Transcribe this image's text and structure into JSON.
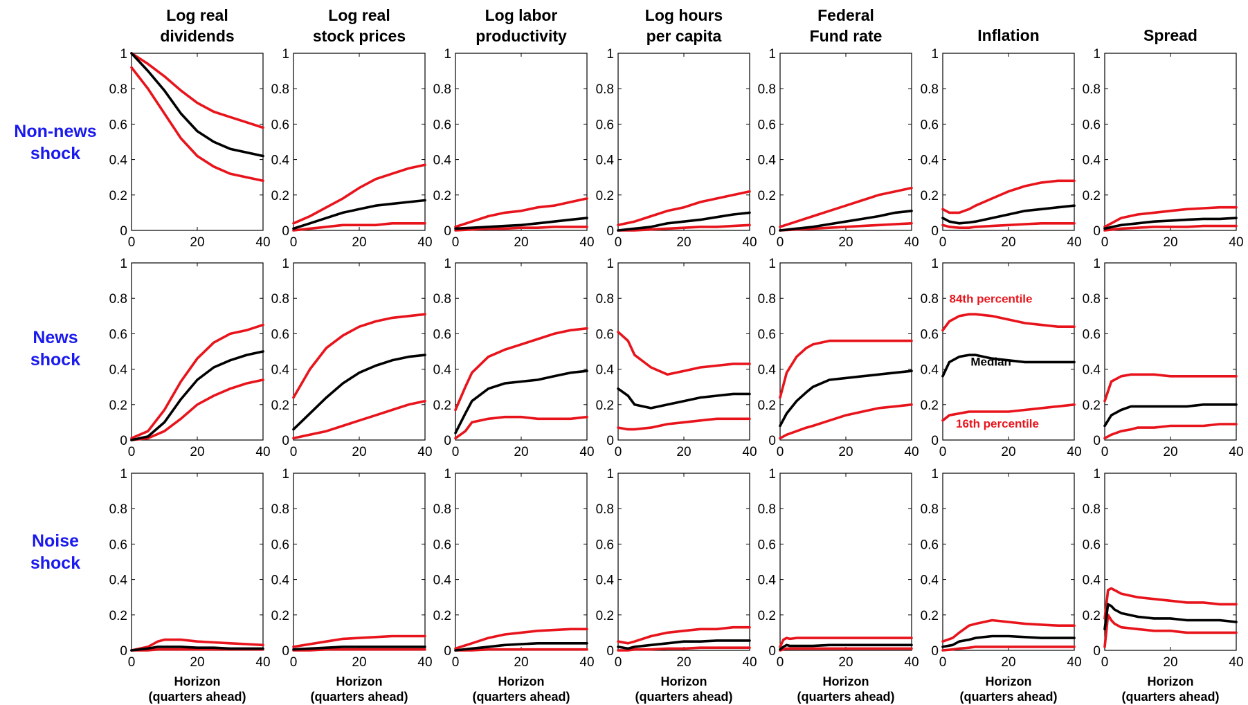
{
  "colors": {
    "median": "#000000",
    "band": "#e8141c",
    "row_label": "#1a1aee",
    "axis": "#000000"
  },
  "columns": [
    [
      "Log real",
      "dividends"
    ],
    [
      "Log real",
      "stock prices"
    ],
    [
      "Log labor",
      "productivity"
    ],
    [
      "Log hours",
      "per capita"
    ],
    [
      "Federal",
      "Fund rate"
    ],
    [
      "Inflation"
    ],
    [
      "Spread"
    ]
  ],
  "rows": [
    [
      "Non-news",
      "shock"
    ],
    [
      "News",
      "shock"
    ],
    [
      "Noise",
      "shock"
    ]
  ],
  "xlabel_lines": [
    "Horizon",
    "(quarters ahead)"
  ],
  "chart_data": {
    "type": "line",
    "layout": "small-multiples 3 rows x 7 columns",
    "xlim": [
      0,
      40
    ],
    "ylim": [
      0,
      1
    ],
    "x_ticks": [
      "0",
      "20",
      "40"
    ],
    "y_ticks": [
      "0",
      "0.2",
      "0.4",
      "0.6",
      "0.8",
      "1"
    ],
    "grid": false,
    "series_names": [
      "84th percentile",
      "Median",
      "16th percentile"
    ],
    "annotations": [
      {
        "text": "84th percentile",
        "panel": [
          1,
          5
        ],
        "color": "#e8141c",
        "x": 2,
        "y": 0.775
      },
      {
        "text": "Median",
        "panel": [
          1,
          5
        ],
        "color": "#000000",
        "x": 8.5,
        "y": 0.42
      },
      {
        "text": "16th percentile",
        "panel": [
          1,
          5
        ],
        "color": "#e8141c",
        "x": 4,
        "y": 0.07
      }
    ],
    "panels": [
      [
        {
          "x": [
            0,
            5,
            10,
            15,
            20,
            25,
            30,
            35,
            40
          ],
          "p84": [
            1,
            0.94,
            0.87,
            0.79,
            0.72,
            0.67,
            0.64,
            0.61,
            0.58
          ],
          "median": [
            1,
            0.9,
            0.79,
            0.66,
            0.56,
            0.5,
            0.46,
            0.44,
            0.42
          ],
          "p16": [
            0.92,
            0.8,
            0.66,
            0.52,
            0.42,
            0.36,
            0.32,
            0.3,
            0.28
          ]
        },
        {
          "x": [
            0,
            5,
            10,
            15,
            20,
            25,
            30,
            35,
            40
          ],
          "p84": [
            0.04,
            0.08,
            0.13,
            0.18,
            0.24,
            0.29,
            0.32,
            0.35,
            0.37
          ],
          "median": [
            0.01,
            0.04,
            0.07,
            0.1,
            0.12,
            0.14,
            0.15,
            0.16,
            0.17
          ],
          "p16": [
            0,
            0.01,
            0.02,
            0.03,
            0.03,
            0.03,
            0.04,
            0.04,
            0.04
          ]
        },
        {
          "x": [
            0,
            5,
            10,
            15,
            20,
            25,
            30,
            35,
            40
          ],
          "p84": [
            0.02,
            0.05,
            0.08,
            0.1,
            0.11,
            0.13,
            0.14,
            0.16,
            0.18
          ],
          "median": [
            0.01,
            0.015,
            0.02,
            0.025,
            0.03,
            0.04,
            0.05,
            0.06,
            0.07
          ],
          "p16": [
            0,
            0.005,
            0.01,
            0.01,
            0.015,
            0.015,
            0.02,
            0.02,
            0.02
          ]
        },
        {
          "x": [
            0,
            5,
            10,
            15,
            20,
            25,
            30,
            35,
            40
          ],
          "p84": [
            0.03,
            0.05,
            0.08,
            0.11,
            0.13,
            0.16,
            0.18,
            0.2,
            0.22
          ],
          "median": [
            0,
            0.01,
            0.02,
            0.04,
            0.05,
            0.06,
            0.075,
            0.09,
            0.1
          ],
          "p16": [
            0,
            0,
            0.005,
            0.01,
            0.015,
            0.02,
            0.02,
            0.025,
            0.03
          ]
        },
        {
          "x": [
            0,
            5,
            10,
            15,
            20,
            25,
            30,
            35,
            40
          ],
          "p84": [
            0.02,
            0.05,
            0.08,
            0.11,
            0.14,
            0.17,
            0.2,
            0.22,
            0.24
          ],
          "median": [
            0,
            0.01,
            0.02,
            0.035,
            0.05,
            0.065,
            0.08,
            0.1,
            0.11
          ],
          "p16": [
            0,
            0.005,
            0.01,
            0.015,
            0.02,
            0.025,
            0.03,
            0.035,
            0.04
          ]
        },
        {
          "x": [
            0,
            2,
            5,
            8,
            10,
            15,
            20,
            25,
            30,
            35,
            40
          ],
          "p84": [
            0.12,
            0.1,
            0.1,
            0.12,
            0.14,
            0.18,
            0.22,
            0.25,
            0.27,
            0.28,
            0.28
          ],
          "median": [
            0.07,
            0.05,
            0.04,
            0.045,
            0.05,
            0.07,
            0.09,
            0.11,
            0.12,
            0.13,
            0.14
          ],
          "p16": [
            0.03,
            0.02,
            0.015,
            0.015,
            0.02,
            0.025,
            0.03,
            0.035,
            0.04,
            0.04,
            0.04
          ]
        },
        {
          "x": [
            0,
            5,
            10,
            15,
            20,
            25,
            30,
            35,
            40
          ],
          "p84": [
            0.02,
            0.07,
            0.09,
            0.1,
            0.11,
            0.12,
            0.125,
            0.13,
            0.13
          ],
          "median": [
            0.01,
            0.03,
            0.04,
            0.05,
            0.055,
            0.06,
            0.065,
            0.065,
            0.07
          ],
          "p16": [
            0,
            0.01,
            0.015,
            0.02,
            0.02,
            0.02,
            0.025,
            0.025,
            0.025
          ]
        }
      ],
      [
        {
          "x": [
            0,
            5,
            10,
            15,
            20,
            25,
            30,
            35,
            40
          ],
          "p84": [
            0.01,
            0.05,
            0.17,
            0.33,
            0.46,
            0.55,
            0.6,
            0.62,
            0.65
          ],
          "median": [
            0,
            0.02,
            0.1,
            0.23,
            0.34,
            0.41,
            0.45,
            0.48,
            0.5
          ],
          "p16": [
            0,
            0.01,
            0.05,
            0.12,
            0.2,
            0.25,
            0.29,
            0.32,
            0.34
          ]
        },
        {
          "x": [
            0,
            5,
            10,
            15,
            20,
            25,
            30,
            35,
            40
          ],
          "p84": [
            0.24,
            0.4,
            0.52,
            0.59,
            0.64,
            0.67,
            0.69,
            0.7,
            0.71
          ],
          "median": [
            0.06,
            0.15,
            0.24,
            0.32,
            0.38,
            0.42,
            0.45,
            0.47,
            0.48
          ],
          "p16": [
            0.01,
            0.03,
            0.05,
            0.08,
            0.11,
            0.14,
            0.17,
            0.2,
            0.22
          ]
        },
        {
          "x": [
            0,
            3,
            5,
            10,
            15,
            20,
            25,
            30,
            35,
            40
          ],
          "p84": [
            0.17,
            0.3,
            0.38,
            0.47,
            0.51,
            0.54,
            0.57,
            0.6,
            0.62,
            0.63
          ],
          "median": [
            0.04,
            0.15,
            0.22,
            0.29,
            0.32,
            0.33,
            0.34,
            0.36,
            0.38,
            0.39
          ],
          "p16": [
            0.01,
            0.05,
            0.1,
            0.12,
            0.13,
            0.13,
            0.12,
            0.12,
            0.12,
            0.13
          ]
        },
        {
          "x": [
            0,
            3,
            5,
            10,
            15,
            20,
            25,
            30,
            35,
            40
          ],
          "p84": [
            0.61,
            0.56,
            0.48,
            0.41,
            0.37,
            0.39,
            0.41,
            0.42,
            0.43,
            0.43
          ],
          "median": [
            0.29,
            0.25,
            0.2,
            0.18,
            0.2,
            0.22,
            0.24,
            0.25,
            0.26,
            0.26
          ],
          "p16": [
            0.07,
            0.06,
            0.06,
            0.07,
            0.09,
            0.1,
            0.11,
            0.12,
            0.12,
            0.12
          ]
        },
        {
          "x": [
            0,
            2,
            5,
            8,
            10,
            15,
            20,
            25,
            30,
            35,
            40
          ],
          "p84": [
            0.24,
            0.38,
            0.47,
            0.52,
            0.54,
            0.56,
            0.56,
            0.56,
            0.56,
            0.56,
            0.56
          ],
          "median": [
            0.08,
            0.15,
            0.22,
            0.27,
            0.3,
            0.34,
            0.35,
            0.36,
            0.37,
            0.38,
            0.39
          ],
          "p16": [
            0.01,
            0.03,
            0.05,
            0.07,
            0.08,
            0.11,
            0.14,
            0.16,
            0.18,
            0.19,
            0.2
          ]
        },
        {
          "x": [
            0,
            2,
            5,
            8,
            10,
            15,
            20,
            25,
            30,
            35,
            40
          ],
          "p84": [
            0.62,
            0.67,
            0.7,
            0.71,
            0.71,
            0.7,
            0.68,
            0.66,
            0.65,
            0.64,
            0.64
          ],
          "median": [
            0.36,
            0.44,
            0.47,
            0.48,
            0.48,
            0.46,
            0.45,
            0.44,
            0.44,
            0.44,
            0.44
          ],
          "p16": [
            0.11,
            0.14,
            0.15,
            0.16,
            0.16,
            0.16,
            0.16,
            0.17,
            0.18,
            0.19,
            0.2
          ]
        },
        {
          "x": [
            0,
            2,
            5,
            8,
            10,
            15,
            20,
            25,
            30,
            35,
            40
          ],
          "p84": [
            0.22,
            0.33,
            0.36,
            0.37,
            0.37,
            0.37,
            0.36,
            0.36,
            0.36,
            0.36,
            0.36
          ],
          "median": [
            0.08,
            0.14,
            0.17,
            0.19,
            0.19,
            0.19,
            0.19,
            0.19,
            0.2,
            0.2,
            0.2
          ],
          "p16": [
            0.01,
            0.03,
            0.05,
            0.06,
            0.07,
            0.07,
            0.08,
            0.08,
            0.08,
            0.09,
            0.09
          ]
        }
      ],
      [
        {
          "x": [
            0,
            5,
            8,
            10,
            15,
            20,
            25,
            30,
            35,
            40
          ],
          "p84": [
            0,
            0.02,
            0.05,
            0.06,
            0.06,
            0.05,
            0.045,
            0.04,
            0.035,
            0.03
          ],
          "median": [
            0,
            0.01,
            0.02,
            0.02,
            0.02,
            0.015,
            0.015,
            0.01,
            0.01,
            0.01
          ],
          "p16": [
            0,
            0,
            0.005,
            0.005,
            0.005,
            0.005,
            0.005,
            0.005,
            0.005,
            0.005
          ]
        },
        {
          "x": [
            0,
            5,
            10,
            15,
            20,
            25,
            30,
            35,
            40
          ],
          "p84": [
            0.02,
            0.035,
            0.05,
            0.065,
            0.07,
            0.075,
            0.08,
            0.08,
            0.08
          ],
          "median": [
            0.005,
            0.01,
            0.015,
            0.02,
            0.02,
            0.02,
            0.02,
            0.02,
            0.02
          ],
          "p16": [
            0,
            0,
            0.005,
            0.005,
            0.005,
            0.005,
            0.005,
            0.005,
            0.005
          ]
        },
        {
          "x": [
            0,
            5,
            10,
            15,
            20,
            25,
            30,
            35,
            40
          ],
          "p84": [
            0.01,
            0.04,
            0.07,
            0.09,
            0.1,
            0.11,
            0.115,
            0.12,
            0.12
          ],
          "median": [
            0,
            0.01,
            0.02,
            0.03,
            0.035,
            0.04,
            0.04,
            0.04,
            0.04
          ],
          "p16": [
            0,
            0,
            0.005,
            0.005,
            0.005,
            0.005,
            0.005,
            0.005,
            0.005
          ]
        },
        {
          "x": [
            0,
            3,
            5,
            10,
            15,
            20,
            25,
            30,
            35,
            40
          ],
          "p84": [
            0.05,
            0.04,
            0.05,
            0.08,
            0.1,
            0.11,
            0.12,
            0.12,
            0.13,
            0.13
          ],
          "median": [
            0.02,
            0.01,
            0.02,
            0.03,
            0.04,
            0.05,
            0.05,
            0.055,
            0.055,
            0.055
          ],
          "p16": [
            0,
            0,
            0.005,
            0.005,
            0.01,
            0.01,
            0.015,
            0.015,
            0.015,
            0.015
          ]
        },
        {
          "x": [
            0,
            1,
            2,
            3,
            5,
            10,
            15,
            20,
            25,
            30,
            35,
            40
          ],
          "p84": [
            0.02,
            0.06,
            0.07,
            0.065,
            0.07,
            0.07,
            0.07,
            0.07,
            0.07,
            0.07,
            0.07,
            0.07
          ],
          "median": [
            0.005,
            0.02,
            0.03,
            0.025,
            0.025,
            0.025,
            0.03,
            0.03,
            0.03,
            0.03,
            0.03,
            0.03
          ],
          "p16": [
            0,
            0.005,
            0.01,
            0.01,
            0.01,
            0.01,
            0.01,
            0.01,
            0.01,
            0.01,
            0.01,
            0.01
          ]
        },
        {
          "x": [
            0,
            3,
            5,
            8,
            10,
            15,
            20,
            25,
            30,
            35,
            40
          ],
          "p84": [
            0.05,
            0.07,
            0.1,
            0.14,
            0.15,
            0.17,
            0.16,
            0.15,
            0.145,
            0.14,
            0.14
          ],
          "median": [
            0.02,
            0.03,
            0.05,
            0.06,
            0.07,
            0.08,
            0.08,
            0.075,
            0.07,
            0.07,
            0.07
          ],
          "p16": [
            0,
            0.005,
            0.01,
            0.015,
            0.02,
            0.02,
            0.02,
            0.02,
            0.02,
            0.02,
            0.02
          ]
        },
        {
          "x": [
            0,
            1,
            2,
            3,
            5,
            10,
            15,
            20,
            25,
            30,
            35,
            40
          ],
          "p84": [
            0.18,
            0.34,
            0.35,
            0.34,
            0.32,
            0.3,
            0.29,
            0.28,
            0.27,
            0.27,
            0.26,
            0.26
          ],
          "median": [
            0.12,
            0.26,
            0.25,
            0.23,
            0.21,
            0.19,
            0.18,
            0.18,
            0.17,
            0.17,
            0.17,
            0.16
          ],
          "p16": [
            0.02,
            0.2,
            0.17,
            0.15,
            0.13,
            0.12,
            0.11,
            0.11,
            0.1,
            0.1,
            0.1,
            0.1
          ]
        }
      ]
    ]
  }
}
